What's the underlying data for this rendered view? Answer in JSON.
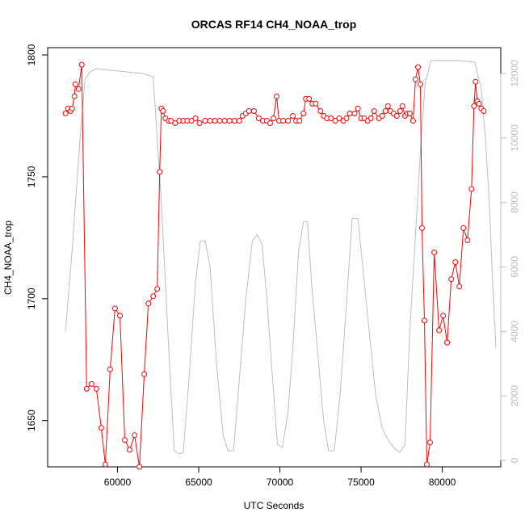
{
  "chart_data": {
    "type": "line",
    "title": "ORCAS RF14 CH4_NOAA_trop",
    "xlabel": "UTC Seconds",
    "ylabel": "CH4_NOAA_trop",
    "xlim": [
      55700,
      83600
    ],
    "ylim": [
      1631,
      1803
    ],
    "y2lim": [
      -200,
      12800
    ],
    "x_ticks": [
      60000,
      65000,
      70000,
      75000,
      80000
    ],
    "y_ticks": [
      1650,
      1700,
      1750,
      1800
    ],
    "y2_ticks": [
      0,
      2000,
      4000,
      6000,
      8000,
      10000,
      12000
    ],
    "colors": {
      "ch4_series": "#ff0000",
      "altitude_series": "#bebebe",
      "axis_right": "#bdbdbd"
    },
    "series": [
      {
        "values_kind": "ch4",
        "points": [
          [
            56800,
            1776
          ],
          [
            56950,
            1778
          ],
          [
            57100,
            1777
          ],
          [
            57200,
            1778
          ],
          [
            57350,
            1783
          ],
          [
            57400,
            1788
          ],
          [
            57600,
            1786
          ],
          [
            57800,
            1796
          ],
          [
            58100,
            1663
          ],
          [
            58400,
            1665
          ],
          [
            58700,
            1663
          ],
          [
            59000,
            1647
          ],
          [
            59250,
            1632
          ],
          [
            59550,
            1671
          ],
          [
            59850,
            1696
          ],
          [
            60150,
            1693
          ],
          [
            60450,
            1642
          ],
          [
            60750,
            1638
          ],
          [
            61050,
            1644
          ],
          [
            61350,
            1631
          ],
          [
            61650,
            1669
          ],
          [
            61900,
            1698
          ],
          [
            62200,
            1701
          ],
          [
            62450,
            1704
          ],
          [
            62600,
            1752
          ],
          [
            62700,
            1778
          ],
          [
            62800,
            1777
          ],
          [
            62950,
            1774
          ],
          [
            63150,
            1773
          ],
          [
            63300,
            1773
          ],
          [
            63550,
            1772
          ],
          [
            63800,
            1773
          ],
          [
            64050,
            1773
          ],
          [
            64300,
            1773
          ],
          [
            64550,
            1773
          ],
          [
            64800,
            1774
          ],
          [
            65050,
            1772
          ],
          [
            65400,
            1773
          ],
          [
            65700,
            1773
          ],
          [
            66000,
            1773
          ],
          [
            66300,
            1773
          ],
          [
            66600,
            1773
          ],
          [
            66900,
            1773
          ],
          [
            67200,
            1773
          ],
          [
            67500,
            1773
          ],
          [
            67700,
            1775
          ],
          [
            67900,
            1776
          ],
          [
            68100,
            1777
          ],
          [
            68400,
            1777
          ],
          [
            68700,
            1774
          ],
          [
            68950,
            1773
          ],
          [
            69200,
            1773
          ],
          [
            69400,
            1772
          ],
          [
            69600,
            1774
          ],
          [
            69800,
            1783
          ],
          [
            69950,
            1773
          ],
          [
            70200,
            1773
          ],
          [
            70500,
            1773
          ],
          [
            70800,
            1775
          ],
          [
            71000,
            1773
          ],
          [
            71200,
            1773
          ],
          [
            71450,
            1776
          ],
          [
            71600,
            1782
          ],
          [
            71800,
            1782
          ],
          [
            72000,
            1780
          ],
          [
            72200,
            1780
          ],
          [
            72500,
            1777
          ],
          [
            72700,
            1775
          ],
          [
            72900,
            1774
          ],
          [
            73150,
            1774
          ],
          [
            73400,
            1773
          ],
          [
            73650,
            1774
          ],
          [
            73900,
            1773
          ],
          [
            74100,
            1774
          ],
          [
            74300,
            1776
          ],
          [
            74600,
            1776
          ],
          [
            74800,
            1778
          ],
          [
            75000,
            1774
          ],
          [
            75200,
            1774
          ],
          [
            75400,
            1773
          ],
          [
            75600,
            1774
          ],
          [
            75800,
            1777
          ],
          [
            76100,
            1774
          ],
          [
            76300,
            1775
          ],
          [
            76500,
            1777
          ],
          [
            76650,
            1779
          ],
          [
            76800,
            1777
          ],
          [
            77000,
            1776
          ],
          [
            77200,
            1775
          ],
          [
            77400,
            1777
          ],
          [
            77550,
            1779
          ],
          [
            77700,
            1775
          ],
          [
            77850,
            1776
          ],
          [
            78000,
            1776
          ],
          [
            78200,
            1773
          ],
          [
            78350,
            1790
          ],
          [
            78500,
            1795
          ],
          [
            78650,
            1788
          ],
          [
            78750,
            1729
          ],
          [
            78900,
            1691
          ],
          [
            79050,
            1632
          ],
          [
            79250,
            1641
          ],
          [
            79500,
            1719
          ],
          [
            79800,
            1687
          ],
          [
            80050,
            1693
          ],
          [
            80300,
            1682
          ],
          [
            80550,
            1708
          ],
          [
            80800,
            1715
          ],
          [
            81050,
            1705
          ],
          [
            81300,
            1729
          ],
          [
            81550,
            1724
          ],
          [
            81800,
            1745
          ],
          [
            81950,
            1779
          ],
          [
            82050,
            1789
          ],
          [
            82150,
            1781
          ],
          [
            82250,
            1780
          ],
          [
            82400,
            1778
          ],
          [
            82550,
            1777
          ]
        ]
      },
      {
        "values_kind": "altitude",
        "points": [
          [
            56800,
            4000
          ],
          [
            57200,
            6500
          ],
          [
            57700,
            10000
          ],
          [
            58000,
            11800
          ],
          [
            58300,
            12050
          ],
          [
            58700,
            12150
          ],
          [
            59500,
            12100
          ],
          [
            60500,
            12050
          ],
          [
            61500,
            12000
          ],
          [
            62200,
            11900
          ],
          [
            62700,
            8000
          ],
          [
            63200,
            3000
          ],
          [
            63500,
            300
          ],
          [
            63800,
            200
          ],
          [
            64050,
            250
          ],
          [
            64400,
            2500
          ],
          [
            64800,
            5500
          ],
          [
            65100,
            6800
          ],
          [
            65400,
            6800
          ],
          [
            65700,
            6000
          ],
          [
            66100,
            3000
          ],
          [
            66500,
            800
          ],
          [
            66800,
            300
          ],
          [
            67150,
            300
          ],
          [
            67500,
            2500
          ],
          [
            67900,
            5000
          ],
          [
            68300,
            6800
          ],
          [
            68600,
            7000
          ],
          [
            68900,
            6700
          ],
          [
            69200,
            5000
          ],
          [
            69550,
            2500
          ],
          [
            69850,
            500
          ],
          [
            70150,
            400
          ],
          [
            70500,
            1500
          ],
          [
            70800,
            3500
          ],
          [
            71150,
            6500
          ],
          [
            71450,
            7400
          ],
          [
            71700,
            7400
          ],
          [
            71950,
            5500
          ],
          [
            72300,
            3500
          ],
          [
            72700,
            1200
          ],
          [
            73000,
            300
          ],
          [
            73350,
            300
          ],
          [
            73700,
            2000
          ],
          [
            74050,
            4500
          ],
          [
            74450,
            7500
          ],
          [
            74800,
            7500
          ],
          [
            75100,
            6000
          ],
          [
            75500,
            4000
          ],
          [
            75900,
            2000
          ],
          [
            76300,
            1000
          ],
          [
            76700,
            600
          ],
          [
            77100,
            350
          ],
          [
            77400,
            250
          ],
          [
            77700,
            500
          ],
          [
            78000,
            4000
          ],
          [
            78350,
            7000
          ],
          [
            78700,
            10000
          ],
          [
            78950,
            11700
          ],
          [
            79300,
            12400
          ],
          [
            80000,
            12400
          ],
          [
            81000,
            12400
          ],
          [
            82000,
            12350
          ],
          [
            82400,
            11500
          ],
          [
            82650,
            10000
          ],
          [
            82900,
            8000
          ],
          [
            83100,
            5500
          ],
          [
            83300,
            3500
          ]
        ]
      }
    ],
    "grid": false,
    "legend": "none"
  }
}
